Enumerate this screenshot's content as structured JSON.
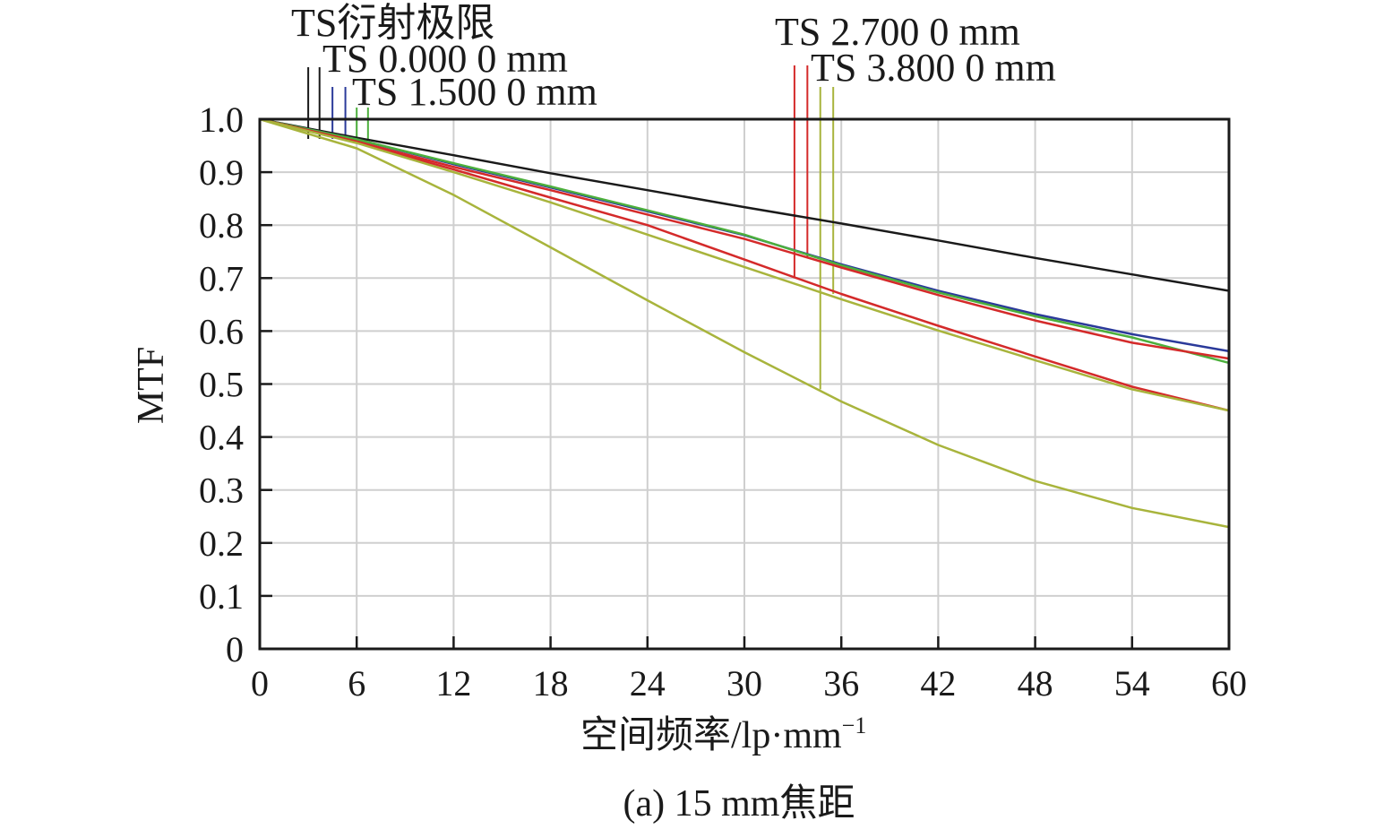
{
  "chart_data": {
    "type": "line",
    "xlabel": "空间频率/lp·mm",
    "xlabel_superscript": "−1",
    "ylabel": "MTF",
    "caption": "(a) 15 mm焦距",
    "xlim": [
      0,
      60
    ],
    "ylim": [
      0,
      1.0
    ],
    "x_ticks": [
      0,
      6,
      12,
      18,
      24,
      30,
      36,
      42,
      48,
      54,
      60
    ],
    "x_tick_labels": [
      "0",
      "6",
      "12",
      "18",
      "24",
      "30",
      "36",
      "42",
      "48",
      "54",
      "60"
    ],
    "y_ticks": [
      0,
      0.1,
      0.2,
      0.3,
      0.4,
      0.5,
      0.6,
      0.7,
      0.8,
      0.9,
      1.0
    ],
    "y_tick_labels": [
      "0",
      "0.1",
      "0.2",
      "0.3",
      "0.4",
      "0.5",
      "0.6",
      "0.7",
      "0.8",
      "0.9",
      "1.0"
    ],
    "grid": true,
    "x": [
      0,
      6,
      12,
      18,
      24,
      30,
      36,
      42,
      48,
      54,
      60
    ],
    "series": [
      {
        "name": "TS衍射极限",
        "color": "#1a1a1a",
        "values": [
          1.0,
          0.965,
          0.932,
          0.898,
          0.866,
          0.834,
          0.803,
          0.771,
          0.738,
          0.707,
          0.676
        ]
      },
      {
        "name": "TS 0.000 0 mm",
        "color": "#2b3a9a",
        "values": [
          1.0,
          0.962,
          0.915,
          0.871,
          0.826,
          0.781,
          0.726,
          0.676,
          0.632,
          0.594,
          0.562
        ]
      },
      {
        "name": "TS 1.500 0 mm",
        "color": "#4caf3c",
        "values": [
          1.0,
          0.962,
          0.917,
          0.873,
          0.828,
          0.782,
          0.724,
          0.673,
          0.628,
          0.588,
          0.54
        ]
      },
      {
        "name": "TS 2.700 0 mm",
        "color": "#d42a2a",
        "values": [
          1.0,
          0.958,
          0.91,
          0.866,
          0.82,
          0.774,
          0.72,
          0.668,
          0.62,
          0.578,
          0.548
        ]
      },
      {
        "name": "TS 2.700 0 mm",
        "color": "#d42a2a",
        "values": [
          1.0,
          0.956,
          0.905,
          0.852,
          0.8,
          0.735,
          0.67,
          0.61,
          0.552,
          0.495,
          0.45
        ]
      },
      {
        "name": "TS 3.800 0 mm",
        "color": "#a8b43c",
        "values": [
          1.0,
          0.955,
          0.9,
          0.843,
          0.782,
          0.721,
          0.66,
          0.601,
          0.545,
          0.49,
          0.45
        ]
      },
      {
        "name": "TS 3.800 0 mm",
        "color": "#a8b43c",
        "values": [
          1.0,
          0.945,
          0.857,
          0.758,
          0.658,
          0.56,
          0.467,
          0.385,
          0.317,
          0.266,
          0.23
        ]
      }
    ],
    "legend": [
      {
        "label": "TS衍射极限",
        "color": "#1a1a1a",
        "markers": [
          {
            "x": 3.0,
            "color": "#1a1a1a"
          },
          {
            "x": 3.7,
            "color": "#1a1a1a"
          }
        ]
      },
      {
        "label": "TS 0.000 0 mm",
        "color": "#2b3a9a",
        "markers": [
          {
            "x": 4.5,
            "color": "#2b3a9a"
          },
          {
            "x": 5.3,
            "color": "#2b3a9a"
          }
        ]
      },
      {
        "label": "TS 1.500 0 mm",
        "color": "#4caf3c",
        "markers": [
          {
            "x": 6.0,
            "color": "#4caf3c"
          },
          {
            "x": 6.7,
            "color": "#4caf3c"
          }
        ]
      },
      {
        "label": "TS 2.700 0 mm",
        "color": "#d42a2a",
        "markers": [
          {
            "x": 33.1,
            "color": "#d42a2a",
            "y": 0.7
          },
          {
            "x": 33.9,
            "color": "#d42a2a",
            "y": 0.74
          }
        ]
      },
      {
        "label": "TS 3.800 0 mm",
        "color": "#a8b43c",
        "markers": [
          {
            "x": 34.7,
            "color": "#a8b43c",
            "y": 0.49
          },
          {
            "x": 35.5,
            "color": "#a8b43c",
            "y": 0.67
          }
        ]
      }
    ]
  }
}
